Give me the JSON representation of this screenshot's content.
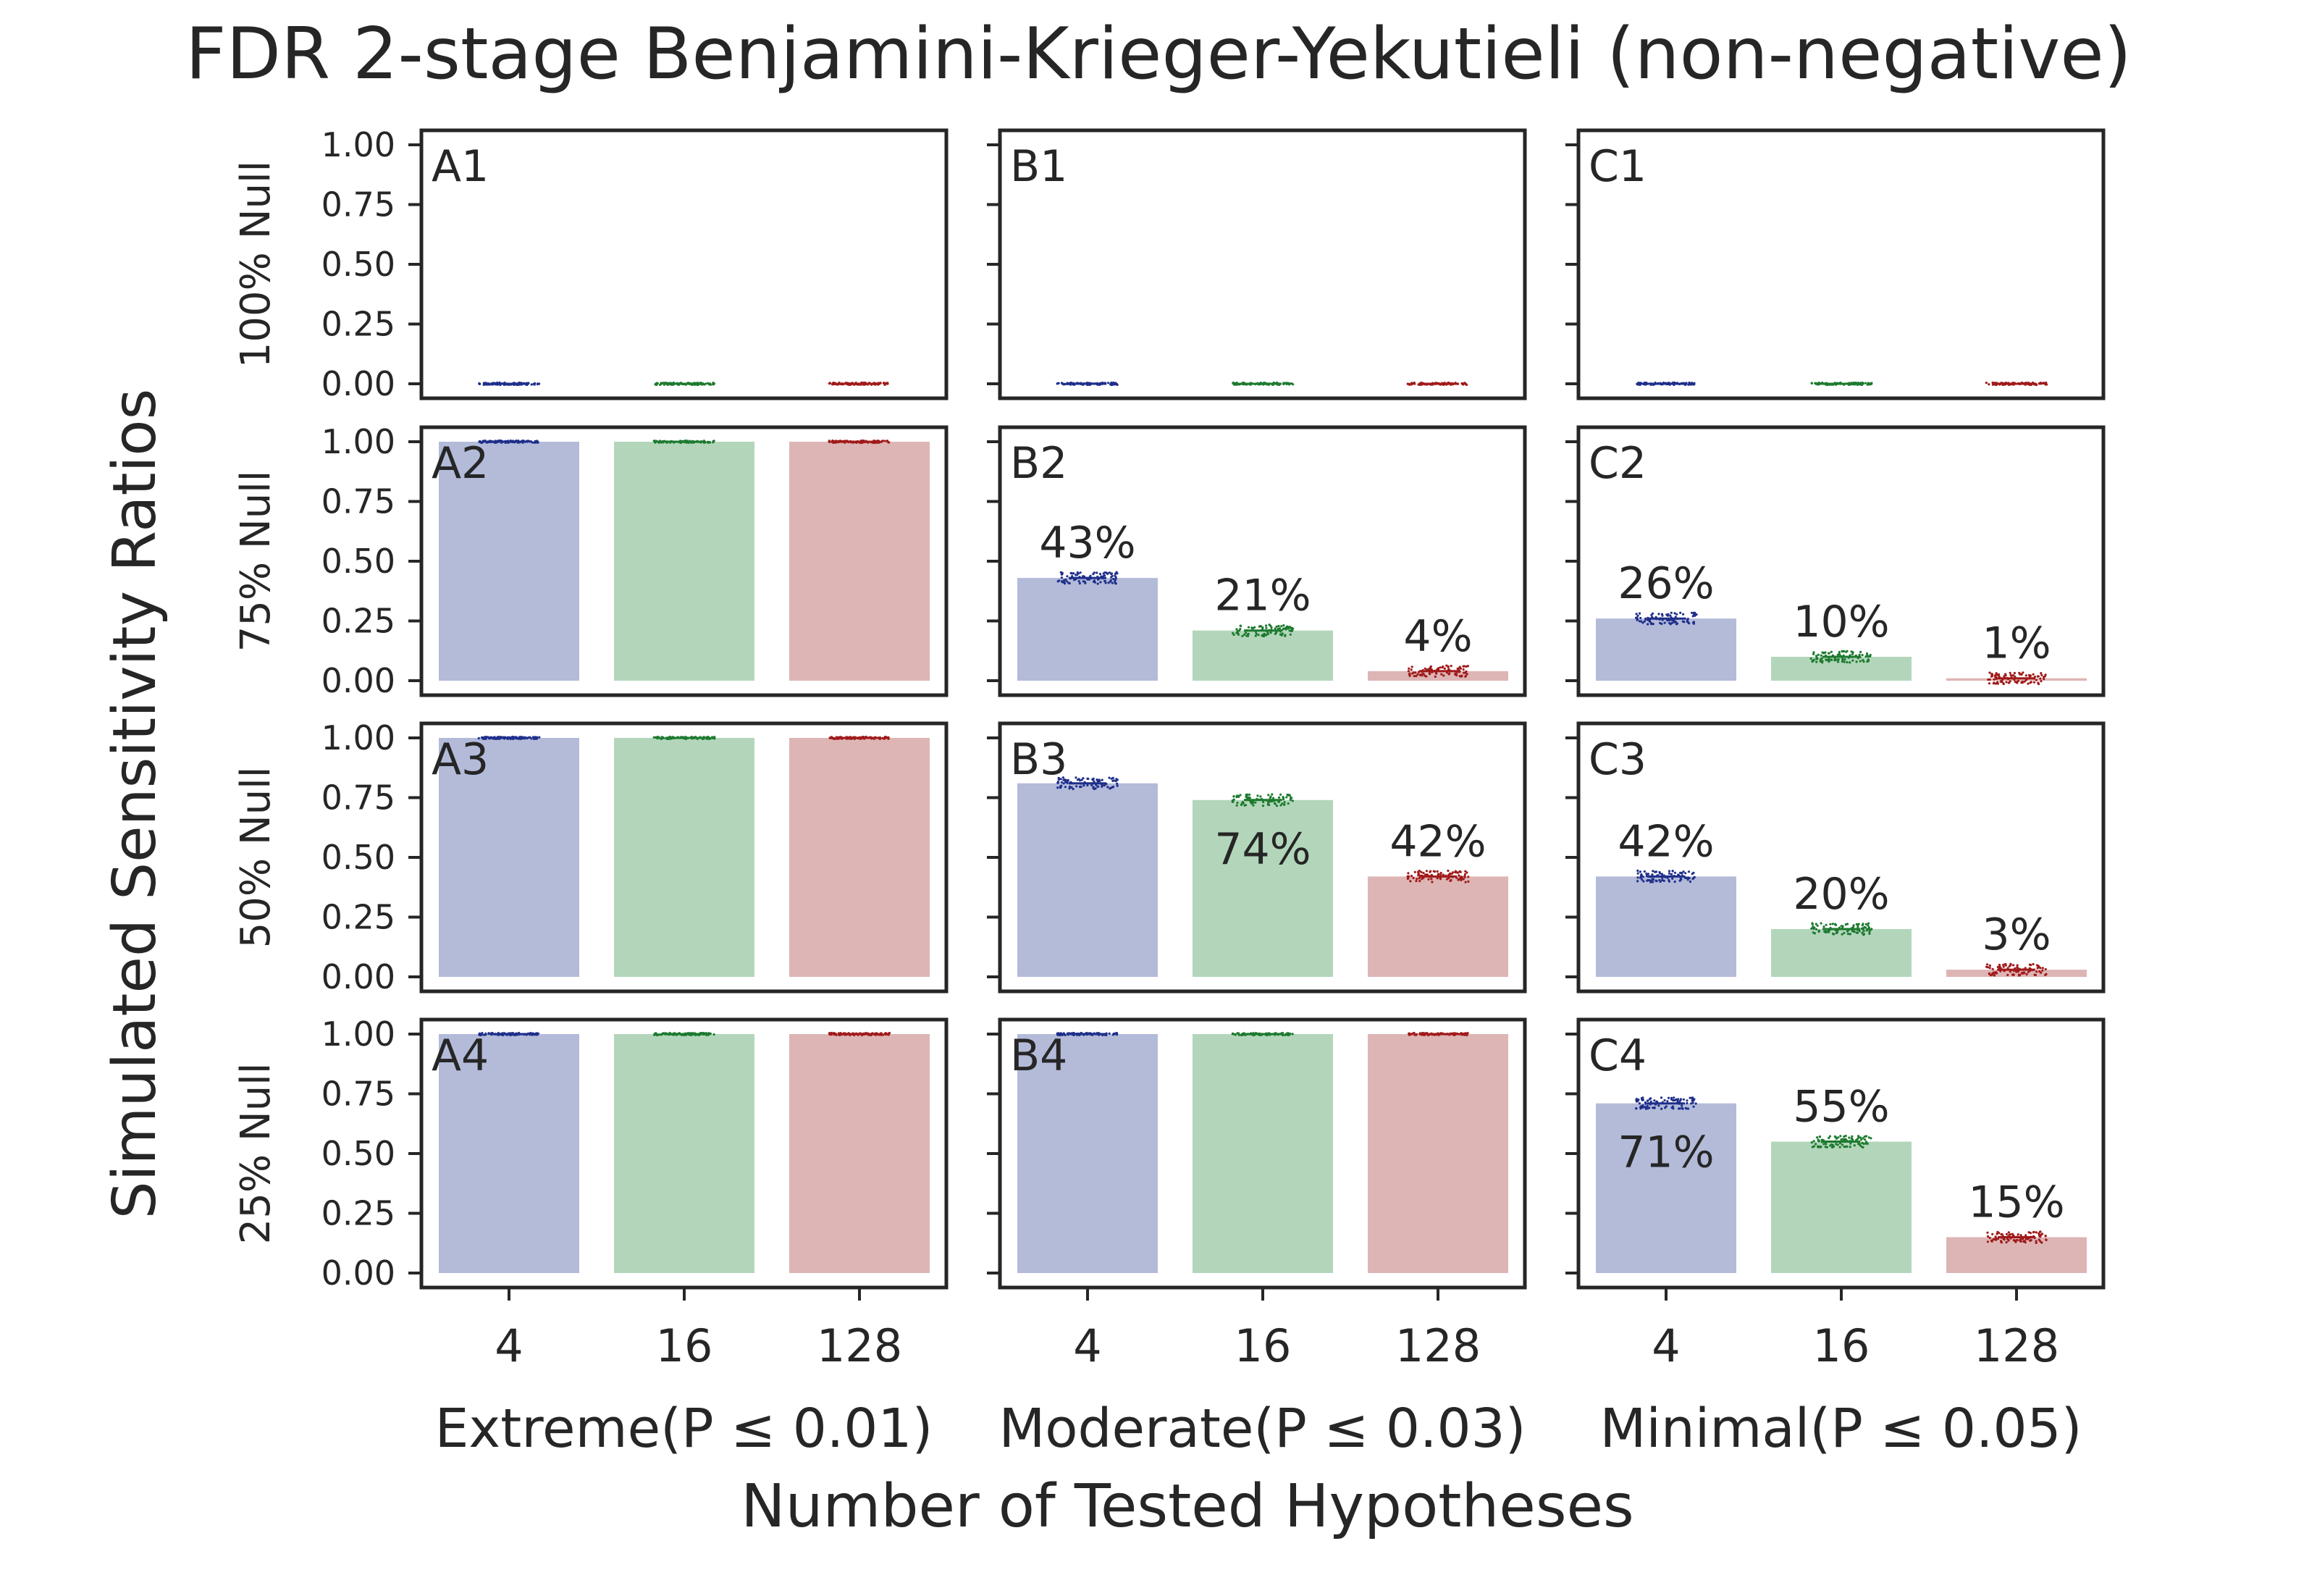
{
  "chart_data": {
    "type": "bar",
    "title": "FDR 2-stage Benjamini-Krieger-Yekutieli (non-negative)",
    "ylabel": "Simulated Sensitivity Ratios",
    "xlabel": "Number of Tested Hypotheses",
    "ylim": [
      0,
      1
    ],
    "y_ticks": [
      "0.00",
      "0.25",
      "0.50",
      "0.75",
      "1.00"
    ],
    "categories": [
      "4",
      "16",
      "128"
    ],
    "columns": [
      "Extreme(P ≤ 0.01)",
      "Moderate(P ≤ 0.03)",
      "Minimal(P ≤ 0.05)"
    ],
    "rows": [
      "100% Null",
      "75% Null",
      "50% Null",
      "25% Null"
    ],
    "colors": {
      "bars": [
        "#b3bbd9",
        "#b3d6bb",
        "#ddb5b5"
      ],
      "points": [
        "#1f2f8a",
        "#1d7a2f",
        "#a01a1a"
      ],
      "axes": "#262626"
    },
    "grid": false,
    "legend": "none",
    "panels": [
      {
        "id": "A1",
        "values": [
          0,
          0,
          0
        ],
        "labels": [
          "",
          "",
          ""
        ]
      },
      {
        "id": "B1",
        "values": [
          0,
          0,
          0
        ],
        "labels": [
          "",
          "",
          ""
        ]
      },
      {
        "id": "C1",
        "values": [
          0,
          0,
          0
        ],
        "labels": [
          "",
          "",
          ""
        ]
      },
      {
        "id": "A2",
        "values": [
          1.0,
          1.0,
          1.0
        ],
        "labels": [
          "",
          "",
          ""
        ]
      },
      {
        "id": "B2",
        "values": [
          0.43,
          0.21,
          0.04
        ],
        "labels": [
          "43%",
          "21%",
          "4%"
        ]
      },
      {
        "id": "C2",
        "values": [
          0.26,
          0.1,
          0.01
        ],
        "labels": [
          "26%",
          "10%",
          "1%"
        ]
      },
      {
        "id": "A3",
        "values": [
          1.0,
          1.0,
          1.0
        ],
        "labels": [
          "",
          "",
          ""
        ]
      },
      {
        "id": "B3",
        "values": [
          0.81,
          0.74,
          0.42
        ],
        "labels": [
          "",
          "74%",
          "42%"
        ]
      },
      {
        "id": "C3",
        "values": [
          0.42,
          0.2,
          0.03
        ],
        "labels": [
          "42%",
          "20%",
          "3%"
        ]
      },
      {
        "id": "A4",
        "values": [
          1.0,
          1.0,
          1.0
        ],
        "labels": [
          "",
          "",
          ""
        ]
      },
      {
        "id": "B4",
        "values": [
          1.0,
          1.0,
          1.0
        ],
        "labels": [
          "",
          "",
          ""
        ]
      },
      {
        "id": "C4",
        "values": [
          0.71,
          0.55,
          0.15
        ],
        "labels": [
          "71%",
          "55%",
          "15%"
        ]
      }
    ]
  }
}
